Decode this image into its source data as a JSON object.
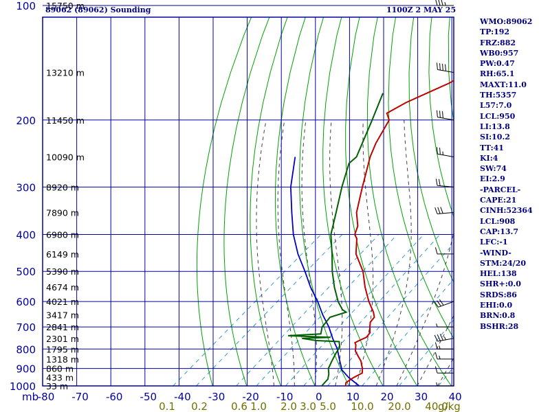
{
  "header": {
    "station_title": "89062 (89062) Sounding",
    "time_title": "1100Z  2 MAY 25"
  },
  "indices": [
    "WMO:89062",
    "TP:192",
    "FRZ:882",
    "WB0:957",
    "PW:0.47",
    "RH:65.1",
    "MAXT:11.0",
    "TH:5357",
    "L57:7.0",
    "LCL:950",
    "LI:13.8",
    "SI:10.2",
    "TT:41",
    "KI:4",
    "SW:74",
    "EI:2.9",
    "-PARCEL-",
    "CAPE:21",
    "CINH:52364",
    "LCL:908",
    "CAP:13.7",
    "LFC:-1",
    "-WIND-",
    "STM:24/20",
    "HEL:138",
    "SHR+:0.0",
    "SRDS:86",
    "EHI:0.0",
    "BRN:0.8",
    "BSHR:28"
  ],
  "colors": {
    "frame": "#0000a0",
    "grid": "#0000a0",
    "dry_adiabat": "#00a000",
    "moist_adiabat": "#404040",
    "mixing_ratio": "#3399cc",
    "temperature": "#c00000",
    "dewpoint": "#006000",
    "parcel": "#0000c0",
    "mixing_label": "#707000",
    "text": "#000080"
  },
  "chart_data": {
    "type": "line",
    "title": "89062 (89062) Sounding",
    "xlabel": "",
    "ylabel": "mb",
    "pressure_ticks": [
      100,
      200,
      300,
      400,
      500,
      600,
      700,
      800,
      900,
      1000
    ],
    "temperature_ticks": [
      -80,
      -70,
      -60,
      -50,
      -40,
      -30,
      -20,
      -10,
      0,
      10,
      20,
      30,
      40
    ],
    "mixing_ratio_ticks": [
      "0.1",
      "0.2",
      "0.6",
      "1.0",
      "2.0",
      "3.0",
      "5.0",
      "10.0",
      "20.0",
      "40.0"
    ],
    "mixing_ratio_unit": "g/kg",
    "height_labels": [
      {
        "p": 100,
        "label": "15750 m"
      },
      {
        "p": 150,
        "label": "13210 m"
      },
      {
        "p": 200,
        "label": "11450 m"
      },
      {
        "p": 250,
        "label": "10090 m"
      },
      {
        "p": 300,
        "label": "8920 m"
      },
      {
        "p": 350,
        "label": "7890 m"
      },
      {
        "p": 400,
        "label": "6980 m"
      },
      {
        "p": 450,
        "label": "6149 m"
      },
      {
        "p": 500,
        "label": "5390 m"
      },
      {
        "p": 550,
        "label": "4674 m"
      },
      {
        "p": 600,
        "label": "4021 m"
      },
      {
        "p": 650,
        "label": "3417 m"
      },
      {
        "p": 700,
        "label": "2841 m"
      },
      {
        "p": 750,
        "label": "2301 m"
      },
      {
        "p": 800,
        "label": "1795 m"
      },
      {
        "p": 850,
        "label": "1318 m"
      },
      {
        "p": 900,
        "label": "860 m"
      },
      {
        "p": 950,
        "label": "433 m"
      },
      {
        "p": 1000,
        "label": "33 m"
      }
    ],
    "temperature": [
      {
        "p": 1000,
        "t": 9
      },
      {
        "p": 980,
        "t": 8
      },
      {
        "p": 950,
        "t": 8.5
      },
      {
        "p": 925,
        "t": 9.5
      },
      {
        "p": 900,
        "t": 8
      },
      {
        "p": 880,
        "t": 6.5
      },
      {
        "p": 860,
        "t": 5
      },
      {
        "p": 840,
        "t": 3
      },
      {
        "p": 810,
        "t": 0
      },
      {
        "p": 780,
        "t": -2
      },
      {
        "p": 770,
        "t": -3
      },
      {
        "p": 760,
        "t": -2.5
      },
      {
        "p": 745,
        "t": -1.5
      },
      {
        "p": 725,
        "t": -2
      },
      {
        "p": 700,
        "t": -4
      },
      {
        "p": 680,
        "t": -5.5
      },
      {
        "p": 660,
        "t": -6
      },
      {
        "p": 640,
        "t": -8
      },
      {
        "p": 600,
        "t": -13
      },
      {
        "p": 550,
        "t": -19
      },
      {
        "p": 500,
        "t": -25
      },
      {
        "p": 450,
        "t": -33
      },
      {
        "p": 410,
        "t": -38
      },
      {
        "p": 400,
        "t": -40
      },
      {
        "p": 380,
        "t": -42
      },
      {
        "p": 350,
        "t": -47
      },
      {
        "p": 300,
        "t": -54
      },
      {
        "p": 250,
        "t": -62
      },
      {
        "p": 230,
        "t": -65
      },
      {
        "p": 200,
        "t": -69
      },
      {
        "p": 192,
        "t": -72
      },
      {
        "p": 180,
        "t": -70
      },
      {
        "p": 160,
        "t": -64
      },
      {
        "p": 150,
        "t": -62
      },
      {
        "p": 140,
        "t": -63
      },
      {
        "p": 120,
        "t": -60
      },
      {
        "p": 115,
        "t": -61
      },
      {
        "p": 100,
        "t": -57
      }
    ],
    "dewpoint": [
      {
        "p": 1000,
        "t": 2
      },
      {
        "p": 960,
        "t": 1.5
      },
      {
        "p": 930,
        "t": 0
      },
      {
        "p": 900,
        "t": -2
      },
      {
        "p": 860,
        "t": -3.5
      },
      {
        "p": 820,
        "t": -5
      },
      {
        "p": 790,
        "t": -6
      },
      {
        "p": 765,
        "t": -8
      },
      {
        "p": 760,
        "t": -15
      },
      {
        "p": 750,
        "t": -20
      },
      {
        "p": 745,
        "t": -12
      },
      {
        "p": 738,
        "t": -25
      },
      {
        "p": 730,
        "t": -16
      },
      {
        "p": 715,
        "t": -17
      },
      {
        "p": 700,
        "t": -18
      },
      {
        "p": 680,
        "t": -18.5
      },
      {
        "p": 660,
        "t": -19
      },
      {
        "p": 640,
        "t": -16
      },
      {
        "p": 630,
        "t": -18
      },
      {
        "p": 600,
        "t": -22
      },
      {
        "p": 550,
        "t": -28
      },
      {
        "p": 500,
        "t": -34
      },
      {
        "p": 450,
        "t": -40
      },
      {
        "p": 400,
        "t": -47
      },
      {
        "p": 350,
        "t": -53
      },
      {
        "p": 300,
        "t": -60
      },
      {
        "p": 260,
        "t": -66
      },
      {
        "p": 250,
        "t": -66
      },
      {
        "p": 200,
        "t": -74
      },
      {
        "p": 170,
        "t": -80
      }
    ],
    "parcel": [
      {
        "p": 1000,
        "t": 13
      },
      {
        "p": 950,
        "t": 7
      },
      {
        "p": 908,
        "t": 2.5
      },
      {
        "p": 850,
        "t": -2
      },
      {
        "p": 800,
        "t": -6
      },
      {
        "p": 750,
        "t": -11
      },
      {
        "p": 700,
        "t": -16
      },
      {
        "p": 650,
        "t": -22
      },
      {
        "p": 600,
        "t": -28
      },
      {
        "p": 550,
        "t": -35
      },
      {
        "p": 500,
        "t": -42
      },
      {
        "p": 450,
        "t": -50
      },
      {
        "p": 400,
        "t": -58
      },
      {
        "p": 350,
        "t": -66
      },
      {
        "p": 300,
        "t": -75
      },
      {
        "p": 250,
        "t": -84
      }
    ],
    "wind_barbs": [
      {
        "p": 100,
        "dir": 270,
        "spd": 35
      },
      {
        "p": 150,
        "dir": 280,
        "spd": 40
      },
      {
        "p": 200,
        "dir": 280,
        "spd": 30
      },
      {
        "p": 250,
        "dir": 280,
        "spd": 25
      },
      {
        "p": 300,
        "dir": 275,
        "spd": 20
      },
      {
        "p": 350,
        "dir": 265,
        "spd": 30
      },
      {
        "p": 450,
        "dir": 270,
        "spd": 10
      },
      {
        "p": 600,
        "dir": 250,
        "spd": 30
      },
      {
        "p": 700,
        "dir": 270,
        "spd": 5
      },
      {
        "p": 750,
        "dir": 260,
        "spd": 35
      },
      {
        "p": 800,
        "dir": 270,
        "spd": 15
      },
      {
        "p": 850,
        "dir": 270,
        "spd": 15
      },
      {
        "p": 925,
        "dir": 270,
        "spd": 10
      },
      {
        "p": 1000,
        "dir": 270,
        "spd": 5
      }
    ]
  }
}
